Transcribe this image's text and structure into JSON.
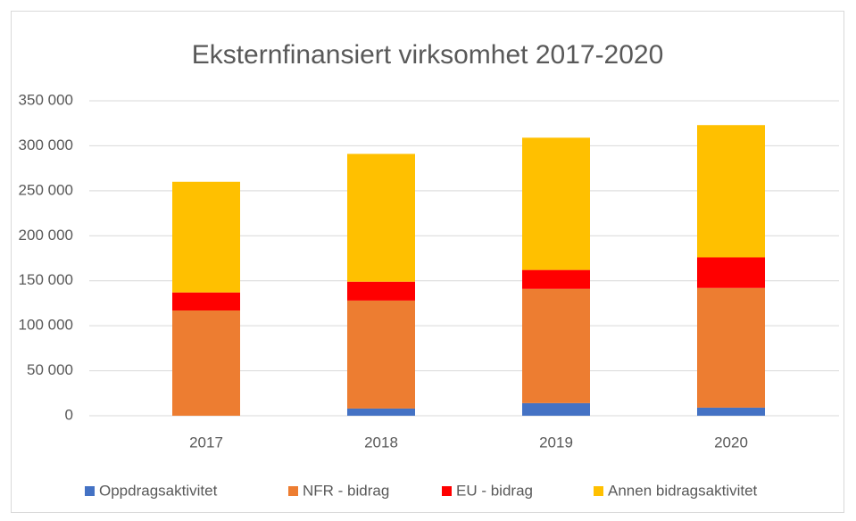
{
  "chart_data": {
    "type": "stacked_bar",
    "title": "Eksternfinansiert virksomhet 2017-2020",
    "categories": [
      "2017",
      "2018",
      "2019",
      "2020"
    ],
    "series": [
      {
        "name": "Oppdragsaktivitet",
        "color": "#4472c4",
        "values": [
          0,
          8000,
          14000,
          9000
        ]
      },
      {
        "name": "NFR - bidrag",
        "color": "#ed7d31",
        "values": [
          117000,
          120000,
          127000,
          133000
        ]
      },
      {
        "name": "EU - bidrag",
        "color": "#ff0000",
        "values": [
          20000,
          21000,
          21000,
          34000
        ]
      },
      {
        "name": "Annen bidragsaktivitet",
        "color": "#ffc000",
        "values": [
          123000,
          142000,
          147000,
          147000
        ]
      }
    ],
    "ylim": [
      0,
      350000
    ],
    "yticks": [
      0,
      {
        "value": 50000,
        "label": "50 000"
      },
      {
        "value": 100000,
        "label": "100 000"
      },
      {
        "value": 150000,
        "label": "150 000"
      },
      {
        "value": 200000,
        "label": "200 000"
      },
      {
        "value": 250000,
        "label": "250 000"
      },
      {
        "value": 300000,
        "label": "300 000"
      },
      {
        "value": 350000,
        "label": "350 000"
      }
    ],
    "grid": true,
    "legend": "bottom"
  }
}
